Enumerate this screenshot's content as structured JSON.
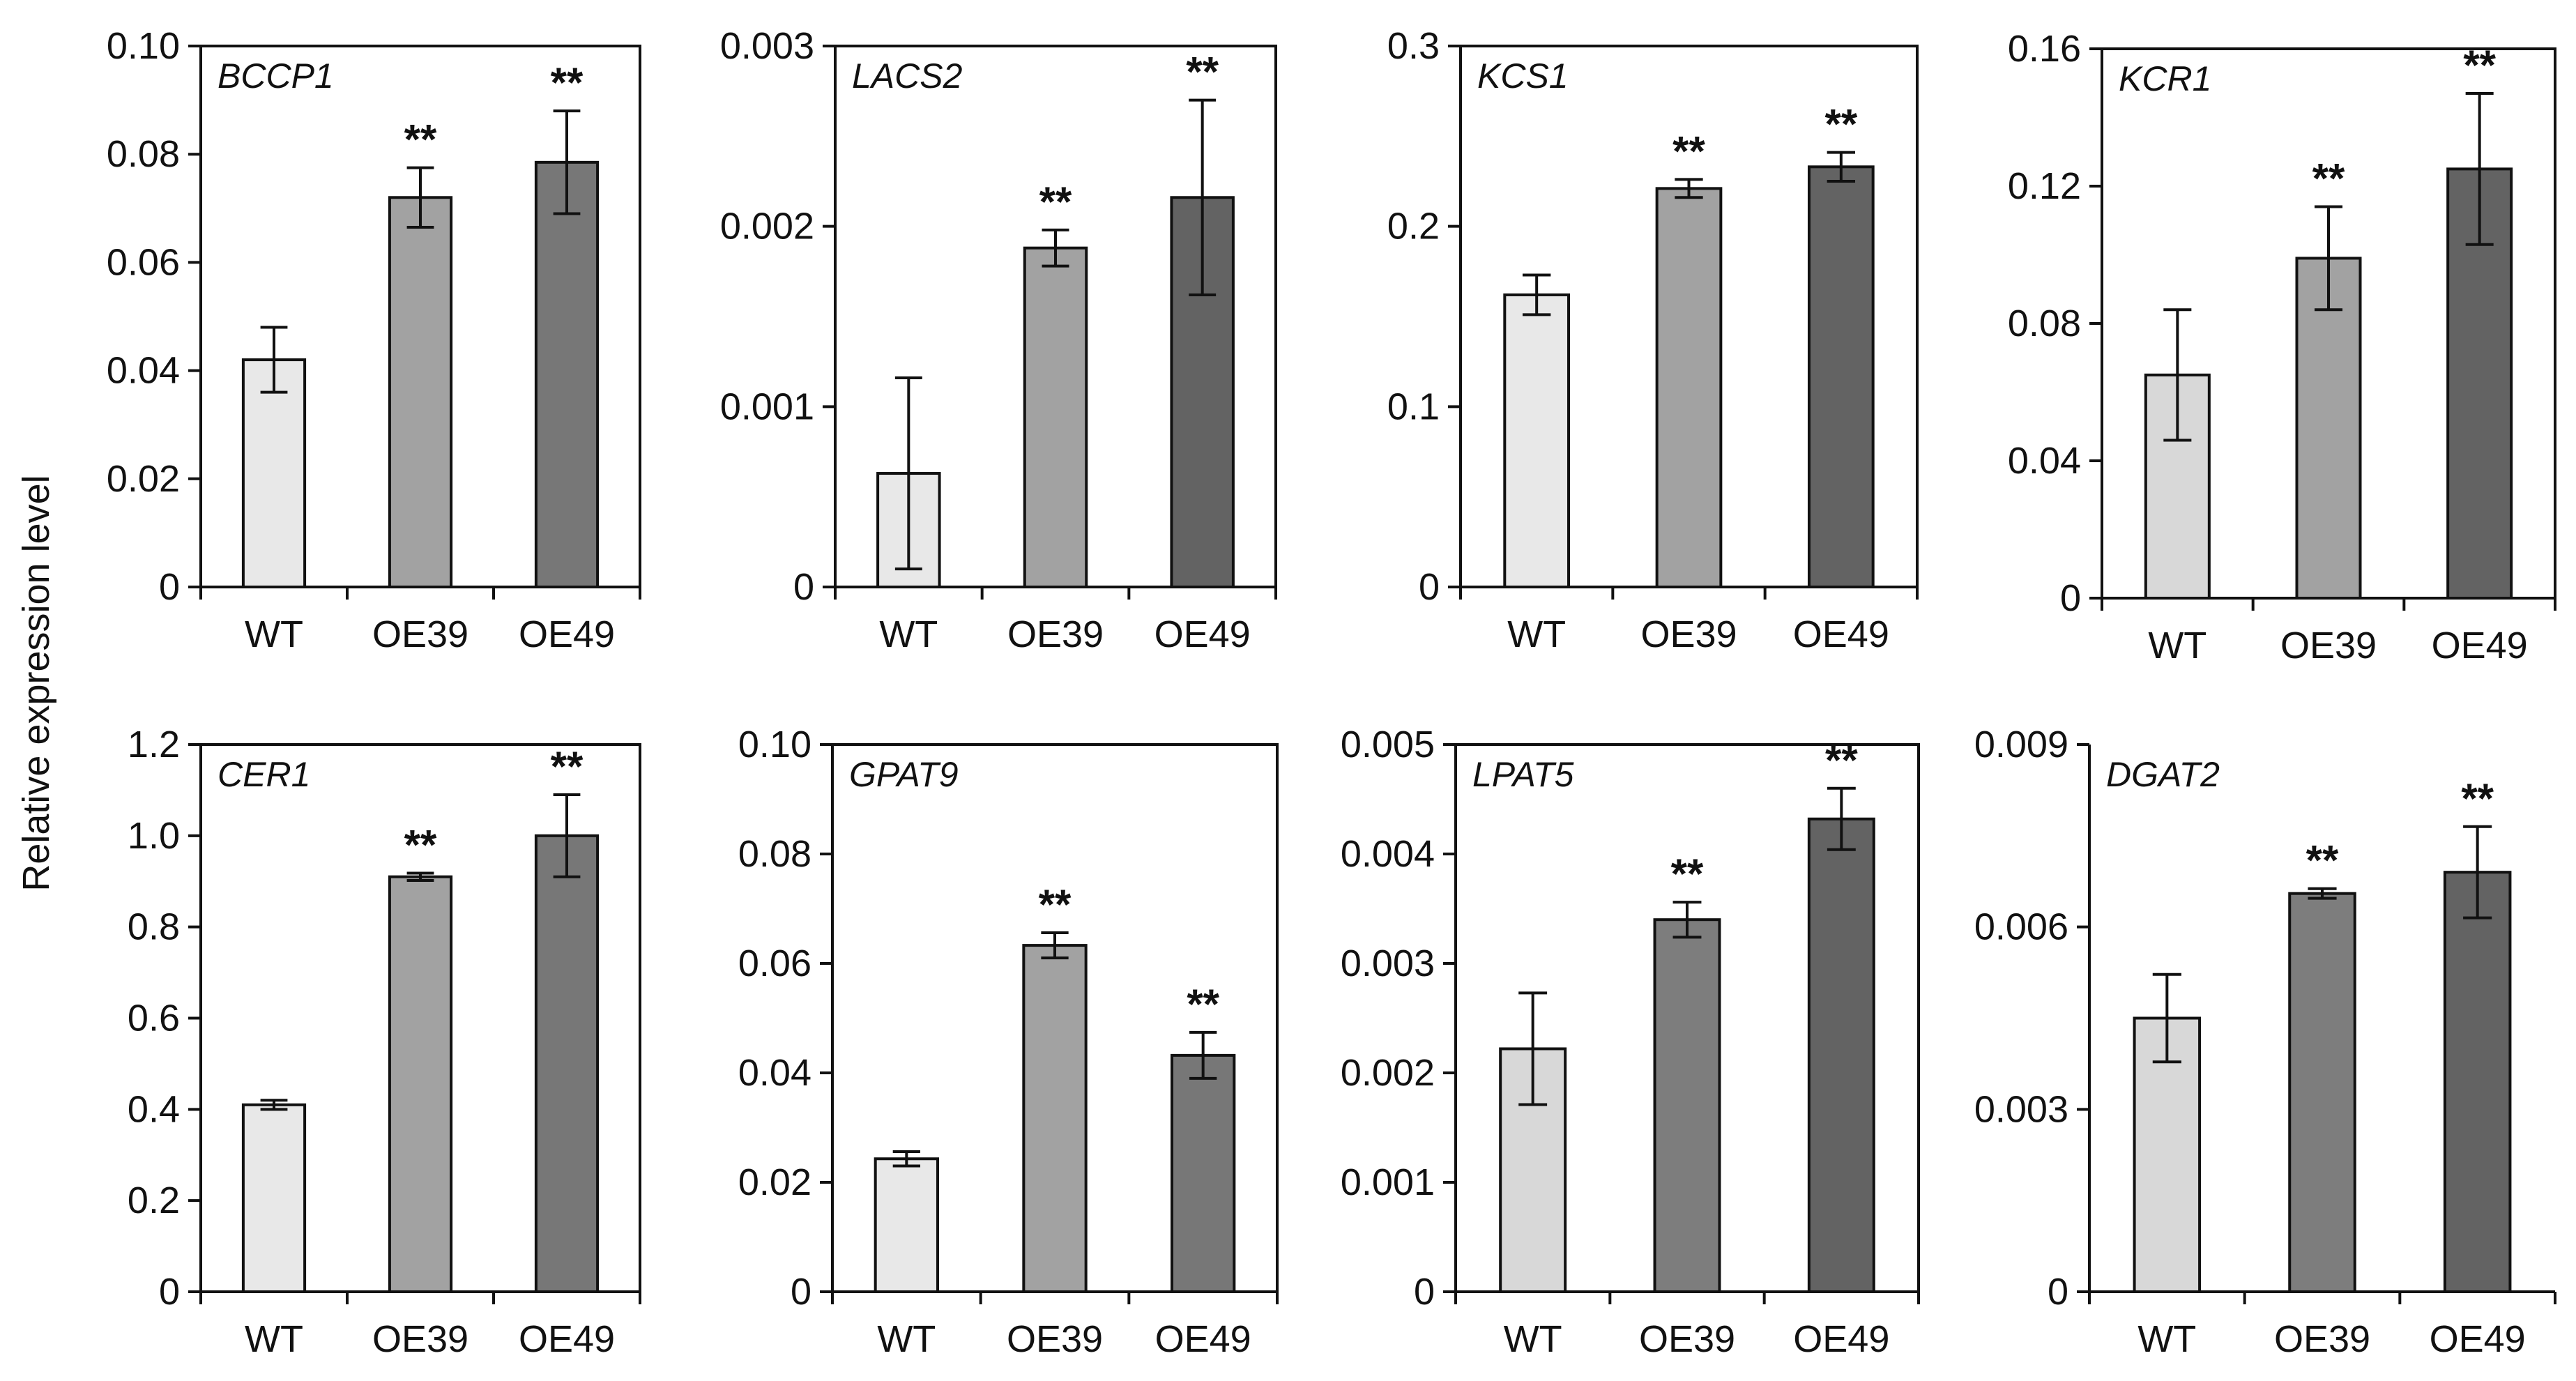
{
  "ylabel": "Relative expression level",
  "chart_data": [
    {
      "type": "bar",
      "gene": "BCCP1",
      "categories": [
        "WT",
        "OE39",
        "OE49"
      ],
      "values": [
        0.042,
        0.072,
        0.0785
      ],
      "errors": [
        0.006,
        0.0055,
        0.0095
      ],
      "significance": [
        "",
        "**",
        "**"
      ],
      "ylim": [
        0,
        0.1
      ],
      "yticks": [
        "0",
        "0.02",
        "0.04",
        "0.06",
        "0.08",
        "0.10"
      ],
      "colors": [
        "#e8e8e8",
        "#a2a2a2",
        "#777777"
      ]
    },
    {
      "type": "bar",
      "gene": "LACS2",
      "categories": [
        "WT",
        "OE39",
        "OE49"
      ],
      "values": [
        0.00063,
        0.00188,
        0.00216
      ],
      "errors": [
        0.00053,
        0.0001,
        0.00054
      ],
      "significance": [
        "",
        "**",
        "**"
      ],
      "ylim": [
        0,
        0.003
      ],
      "yticks": [
        "0",
        "0.001",
        "0.002",
        "0.003"
      ],
      "colors": [
        "#e8e8e8",
        "#a2a2a2",
        "#636363"
      ]
    },
    {
      "type": "bar",
      "gene": "KCS1",
      "categories": [
        "WT",
        "OE39",
        "OE49"
      ],
      "values": [
        0.162,
        0.221,
        0.233
      ],
      "errors": [
        0.011,
        0.005,
        0.008
      ],
      "significance": [
        "",
        "**",
        "**"
      ],
      "ylim": [
        0,
        0.3
      ],
      "yticks": [
        "0",
        "0.1",
        "0.2",
        "0.3"
      ],
      "colors": [
        "#e8e8e8",
        "#a2a2a2",
        "#636363"
      ]
    },
    {
      "type": "bar",
      "gene": "KCR1",
      "categories": [
        "WT",
        "OE39",
        "OE49"
      ],
      "values": [
        0.065,
        0.099,
        0.125
      ],
      "errors": [
        0.019,
        0.015,
        0.022
      ],
      "significance": [
        "",
        "**",
        "**"
      ],
      "ylim": [
        0,
        0.16
      ],
      "yticks": [
        "0",
        "0.04",
        "0.08",
        "0.12",
        "0.16"
      ],
      "colors": [
        "#d8d8d8",
        "#a2a2a2",
        "#636363"
      ]
    },
    {
      "type": "bar",
      "gene": "CER1",
      "categories": [
        "WT",
        "OE39",
        "OE49"
      ],
      "values": [
        0.41,
        0.91,
        1.0
      ],
      "errors": [
        0.01,
        0.008,
        0.09
      ],
      "significance": [
        "",
        "**",
        "**"
      ],
      "ylim": [
        0,
        1.2
      ],
      "yticks": [
        "0",
        "0.2",
        "0.4",
        "0.6",
        "0.8",
        "1.0",
        "1.2"
      ],
      "colors": [
        "#e8e8e8",
        "#a2a2a2",
        "#777777"
      ]
    },
    {
      "type": "bar",
      "gene": "GPAT9",
      "categories": [
        "WT",
        "OE39",
        "OE49"
      ],
      "values": [
        0.0243,
        0.0633,
        0.0432
      ],
      "errors": [
        0.0013,
        0.0023,
        0.0042
      ],
      "significance": [
        "",
        "**",
        "**"
      ],
      "ylim": [
        0,
        0.1
      ],
      "yticks": [
        "0",
        "0.02",
        "0.04",
        "0.06",
        "0.08",
        "0.10"
      ],
      "colors": [
        "#e8e8e8",
        "#a2a2a2",
        "#777777"
      ]
    },
    {
      "type": "bar",
      "gene": "LPAT5",
      "categories": [
        "WT",
        "OE39",
        "OE49"
      ],
      "values": [
        0.00222,
        0.0034,
        0.00432
      ],
      "errors": [
        0.00051,
        0.00016,
        0.00028
      ],
      "significance": [
        "",
        "**",
        "**"
      ],
      "ylim": [
        0,
        0.005
      ],
      "yticks": [
        "0",
        "0.001",
        "0.002",
        "0.003",
        "0.004",
        "0.005"
      ],
      "colors": [
        "#d8d8d8",
        "#7d7d7d",
        "#636363"
      ]
    },
    {
      "type": "bar",
      "gene": "DGAT2",
      "categories": [
        "WT",
        "OE39",
        "OE49"
      ],
      "values": [
        0.0045,
        0.00655,
        0.0069
      ],
      "errors": [
        0.00072,
        8e-05,
        0.00075
      ],
      "significance": [
        "",
        "**",
        "**"
      ],
      "ylim": [
        0,
        0.009
      ],
      "yticks": [
        "0",
        "0.003",
        "0.006",
        "0.009"
      ],
      "colors": [
        "#d8d8d8",
        "#7d7d7d",
        "#636363"
      ]
    }
  ]
}
